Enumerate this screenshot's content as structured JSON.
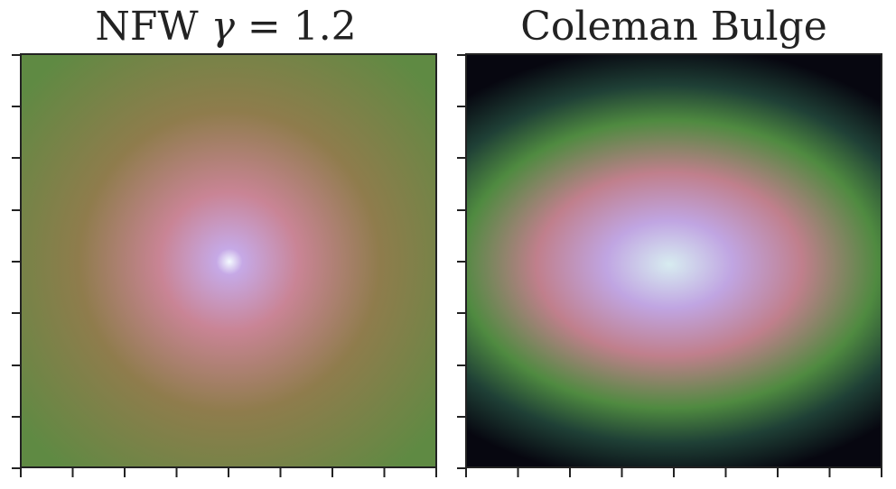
{
  "panels": [
    {
      "id": "nfw",
      "title_prefix": "NFW ",
      "title_symbol": "γ",
      "title_suffix": " = 1.2",
      "colors": {
        "center": "#f4fbff",
        "inner": "#c6a9e6",
        "mid": "#c98495",
        "outer": "#8f7c4c",
        "edge": "#5f8a43"
      }
    },
    {
      "id": "coleman-bulge",
      "title": "Coleman Bulge",
      "colors": {
        "center": "#d7ecf0",
        "inner": "#c0a5e2",
        "mid": "#c07f8c",
        "outer": "#4f8a40",
        "dark": "#1f4036",
        "edge": "#070710"
      }
    }
  ]
}
